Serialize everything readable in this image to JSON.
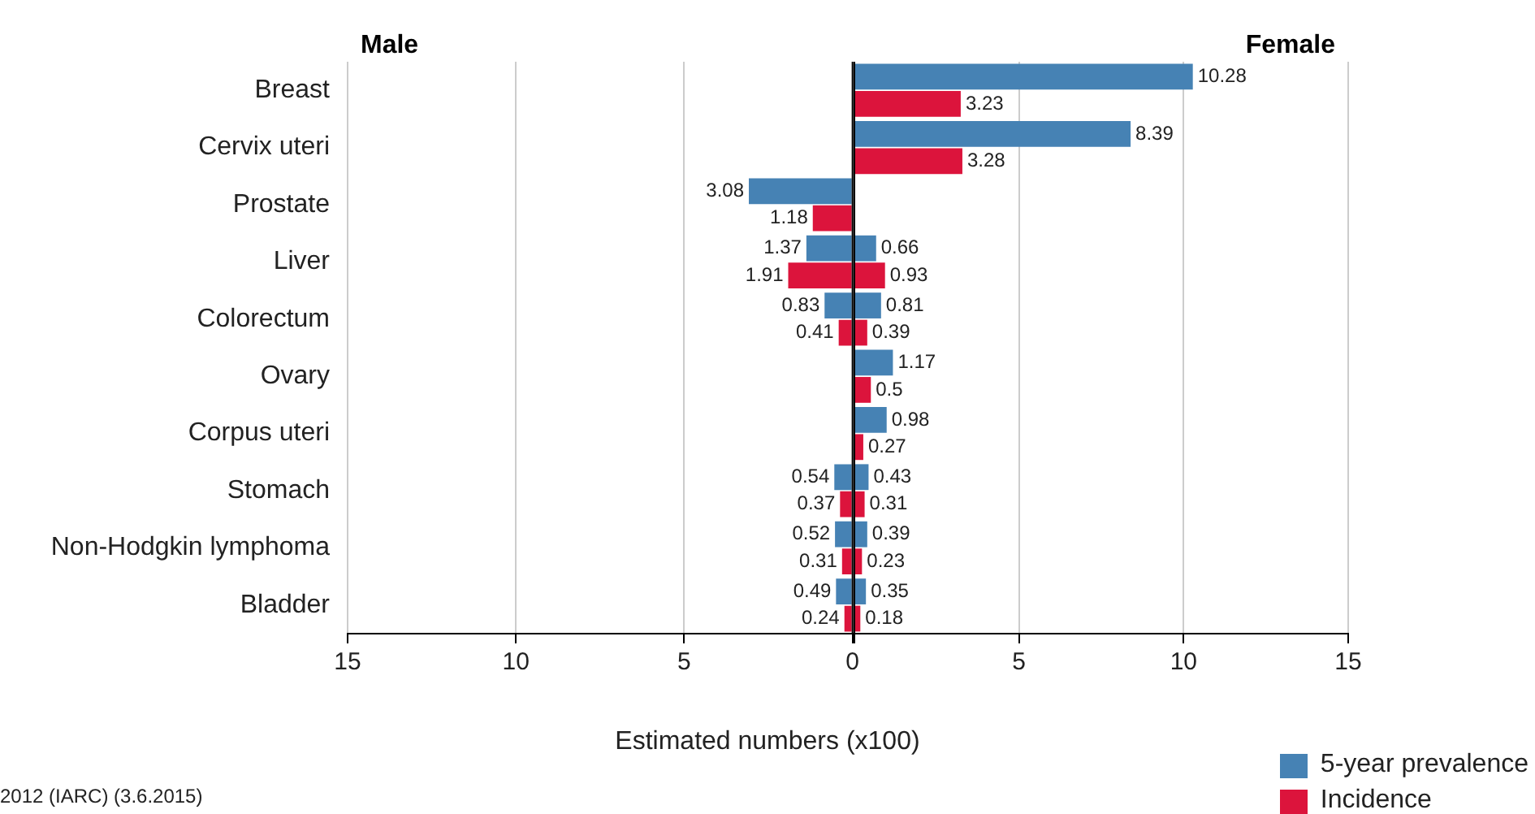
{
  "chart_data": [
    {
      "type": "bar",
      "orientation": "horizontal",
      "title": "Male",
      "xlabel": "Estimated numbers (x100)",
      "annotations": [
        "2012 (IARC) (3.6.2015)"
      ],
      "categories": [
        "Breast",
        "Cervix uteri",
        "Prostate",
        "Liver",
        "Colorectum",
        "Ovary",
        "Corpus uteri",
        "Stomach",
        "Non-Hodgkin lymphoma",
        "Bladder"
      ],
      "xlim": [
        15,
        0
      ],
      "xticks": [
        15,
        10,
        5,
        0
      ],
      "grid": "x",
      "data_labels": true,
      "series": [
        {
          "color": "#4682b4",
          "values": [
            null,
            null,
            3.08,
            1.37,
            0.83,
            null,
            null,
            0.54,
            0.52,
            0.49
          ]
        },
        {
          "color": "#dc143c",
          "values": [
            null,
            null,
            1.18,
            1.91,
            0.41,
            null,
            null,
            0.37,
            0.31,
            0.24
          ]
        }
      ]
    },
    {
      "type": "bar",
      "orientation": "horizontal",
      "title": "Female",
      "xlim": [
        0,
        15
      ],
      "xticks": [
        {
          "value": 0,
          "label": null
        },
        5,
        10,
        15
      ],
      "grid": "x",
      "data_labels": true,
      "tick_labels": "x",
      "legend": "bottom right",
      "series": [
        {
          "name": "5-year prevalence",
          "color": "#4682b4",
          "values": [
            10.28,
            8.39,
            null,
            0.66,
            0.81,
            1.17,
            0.98,
            0.43,
            0.39,
            0.35
          ]
        },
        {
          "name": "Incidence",
          "color": "#dc143c",
          "values": [
            3.23,
            3.28,
            null,
            0.93,
            0.39,
            0.5,
            0.27,
            0.31,
            0.23,
            0.18
          ]
        }
      ]
    }
  ]
}
